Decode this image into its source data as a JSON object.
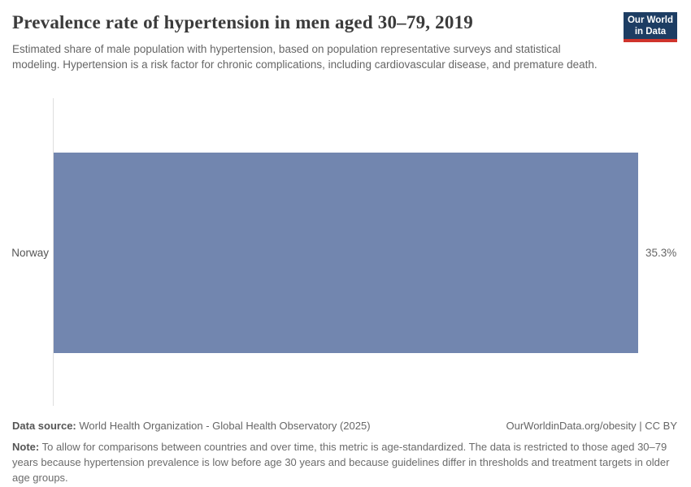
{
  "header": {
    "title": "Prevalence rate of hypertension in men aged 30–79, 2019",
    "subtitle": "Estimated share of male population with hypertension, based on population representative surveys and statistical modeling. Hypertension is a risk factor for chronic complications, including cardiovascular disease, and premature death.",
    "logo": {
      "line1": "Our World",
      "line2": "in Data"
    }
  },
  "chart_data": {
    "type": "bar",
    "orientation": "horizontal",
    "title": "Prevalence rate of hypertension in men aged 30–79, 2019",
    "categories": [
      "Norway"
    ],
    "values": [
      35.3
    ],
    "value_labels": [
      "35.3%"
    ],
    "unit": "%",
    "xlim": [
      0,
      35.3
    ],
    "grid": false,
    "legend": false,
    "bar_color": "#7286af",
    "axis_line_color": "#dedede"
  },
  "footer": {
    "datasource_label": "Data source:",
    "datasource_value": "World Health Organization - Global Health Observatory (2025)",
    "license": "OurWorldinData.org/obesity | CC BY",
    "note_label": "Note:",
    "note_text": "To allow for comparisons between countries and over time, this metric is age-standardized. The data is restricted to those aged 30–79 years because hypertension prevalence is low before age 30 years and because guidelines differ in thresholds and treatment targets in older age groups."
  },
  "colors": {
    "bar": "#7286af",
    "logo_background": "#1d3d63",
    "logo_stripe": "#d0342c",
    "title_text": "#3b3b3b",
    "body_text": "#666666"
  }
}
